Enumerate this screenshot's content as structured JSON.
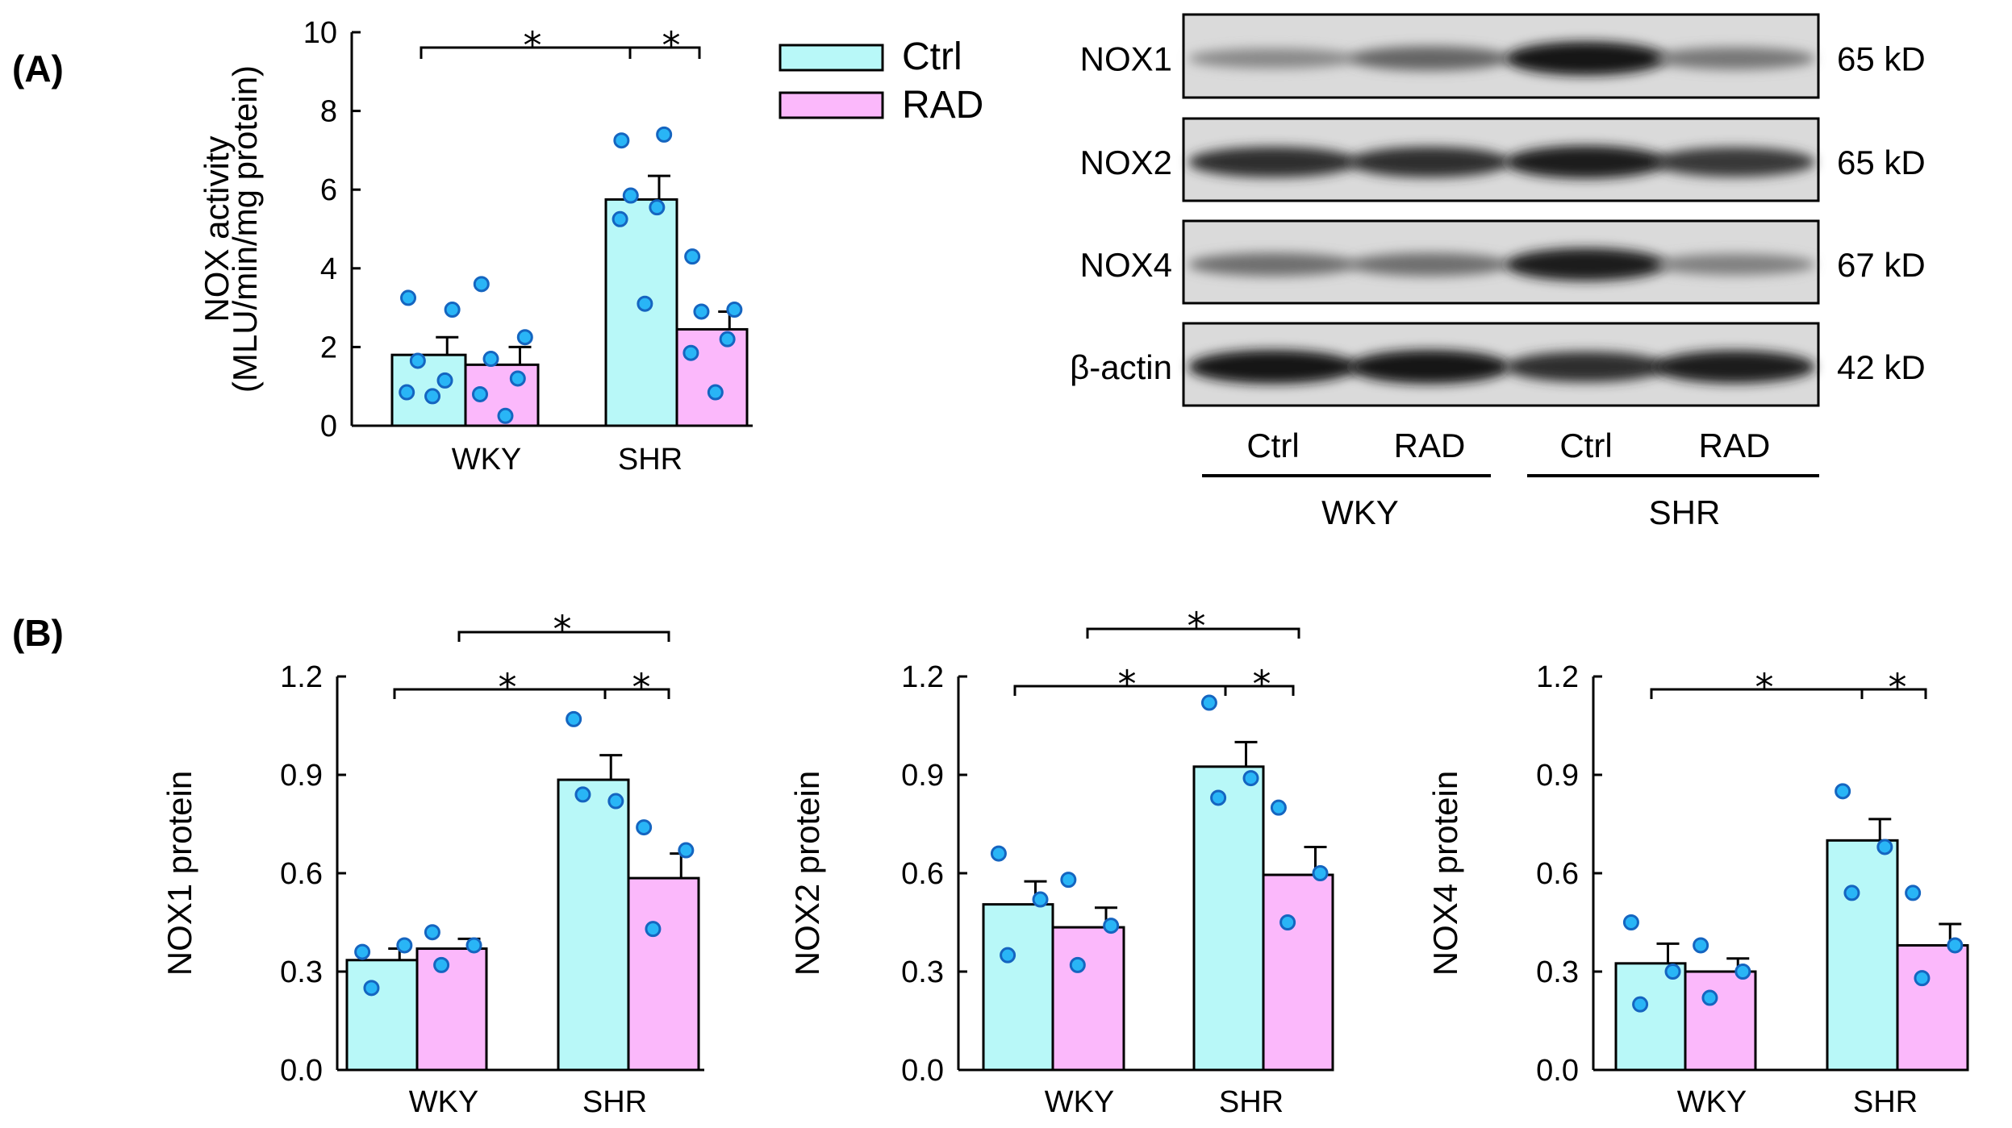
{
  "colors": {
    "ctrl": "#b8f8f8",
    "rad": "#fbb8fb",
    "dot": "#29b5f6",
    "dot_edge": "#1565c0"
  },
  "panels": {
    "a": "(A)",
    "b": "(B)"
  },
  "legend": [
    {
      "label": "Ctrl",
      "color": "#b8f8f8"
    },
    {
      "label": "RAD",
      "color": "#fbb8fb"
    }
  ],
  "chart_data": [
    {
      "type": "bar",
      "panel": "A",
      "categories": [
        "WKY",
        "SHR"
      ],
      "ylabel_line1": "NOX activity",
      "ylabel_line2": "(MLU/min/mg protein)",
      "ylim": [
        0,
        10
      ],
      "yticks": [
        "0",
        "2",
        "4",
        "6",
        "8",
        "10"
      ],
      "series": [
        {
          "name": "Ctrl",
          "values": [
            1.8,
            5.75
          ],
          "errors": [
            0.45,
            0.6
          ],
          "points": [
            [
              3.25,
              2.95,
              1.65,
              1.15,
              0.85,
              0.75
            ],
            [
              7.25,
              7.4,
              5.85,
              5.55,
              5.25,
              3.1
            ]
          ]
        },
        {
          "name": "RAD",
          "values": [
            1.55,
            2.45
          ],
          "errors": [
            0.45,
            0.45
          ],
          "points": [
            [
              3.6,
              2.25,
              1.7,
              1.2,
              0.8,
              0.25
            ],
            [
              4.3,
              2.95,
              2.9,
              2.2,
              1.85,
              0.85
            ]
          ]
        }
      ],
      "sig": [
        "*",
        "*"
      ]
    },
    {
      "type": "bar",
      "panel": "B",
      "categories": [
        "WKY",
        "SHR"
      ],
      "ylabel": "NOX1 protein",
      "ylim": [
        0,
        1.2
      ],
      "yticks": [
        "0.0",
        "0.3",
        "0.6",
        "0.9",
        "1.2"
      ],
      "series": [
        {
          "name": "Ctrl",
          "values": [
            0.335,
            0.885
          ],
          "errors": [
            0.035,
            0.075
          ],
          "points": [
            [
              0.36,
              0.38,
              0.25
            ],
            [
              1.07,
              0.82,
              0.84
            ]
          ]
        },
        {
          "name": "RAD",
          "values": [
            0.37,
            0.585
          ],
          "errors": [
            0.03,
            0.075
          ],
          "points": [
            [
              0.42,
              0.38,
              0.32
            ],
            [
              0.74,
              0.67,
              0.43
            ]
          ]
        }
      ],
      "sig": [
        "*",
        "*",
        "*"
      ]
    },
    {
      "type": "bar",
      "panel": "B",
      "categories": [
        "WKY",
        "SHR"
      ],
      "ylabel": "NOX2 protein",
      "ylim": [
        0,
        1.2
      ],
      "yticks": [
        "0.0",
        "0.3",
        "0.6",
        "0.9",
        "1.2"
      ],
      "series": [
        {
          "name": "Ctrl",
          "values": [
            0.505,
            0.925
          ],
          "errors": [
            0.07,
            0.075
          ],
          "points": [
            [
              0.66,
              0.52,
              0.35
            ],
            [
              1.12,
              0.89,
              0.83
            ]
          ]
        },
        {
          "name": "RAD",
          "values": [
            0.435,
            0.595
          ],
          "errors": [
            0.06,
            0.085
          ],
          "points": [
            [
              0.58,
              0.44,
              0.32
            ],
            [
              0.8,
              0.6,
              0.45
            ]
          ]
        }
      ],
      "sig": [
        "*",
        "*",
        "*"
      ]
    },
    {
      "type": "bar",
      "panel": "B",
      "categories": [
        "WKY",
        "SHR"
      ],
      "ylabel": "NOX4 protein",
      "ylim": [
        0,
        1.2
      ],
      "yticks": [
        "0.0",
        "0.3",
        "0.6",
        "0.9",
        "1.2"
      ],
      "series": [
        {
          "name": "Ctrl",
          "values": [
            0.325,
            0.7
          ],
          "errors": [
            0.06,
            0.065
          ],
          "points": [
            [
              0.45,
              0.3,
              0.2
            ],
            [
              0.85,
              0.68,
              0.54
            ]
          ]
        },
        {
          "name": "RAD",
          "values": [
            0.3,
            0.38
          ],
          "errors": [
            0.04,
            0.065
          ],
          "points": [
            [
              0.38,
              0.3,
              0.22
            ],
            [
              0.54,
              0.38,
              0.28
            ]
          ]
        }
      ],
      "sig": [
        "*",
        "*"
      ]
    }
  ],
  "blot": {
    "rows": [
      {
        "label": "NOX1",
        "kd": "65 kD",
        "bands": [
          0.35,
          0.55,
          1.0,
          0.45
        ]
      },
      {
        "label": "NOX2",
        "kd": "65 kD",
        "bands": [
          0.85,
          0.85,
          0.95,
          0.8
        ]
      },
      {
        "label": "NOX4",
        "kd": "67 kD",
        "bands": [
          0.5,
          0.5,
          0.95,
          0.4
        ]
      },
      {
        "label": "β-actin",
        "kd": "42 kD",
        "bands": [
          1.0,
          1.0,
          0.85,
          0.95
        ]
      }
    ],
    "lanes": [
      "Ctrl",
      "RAD",
      "Ctrl",
      "RAD"
    ],
    "groups": [
      "WKY",
      "SHR"
    ]
  }
}
